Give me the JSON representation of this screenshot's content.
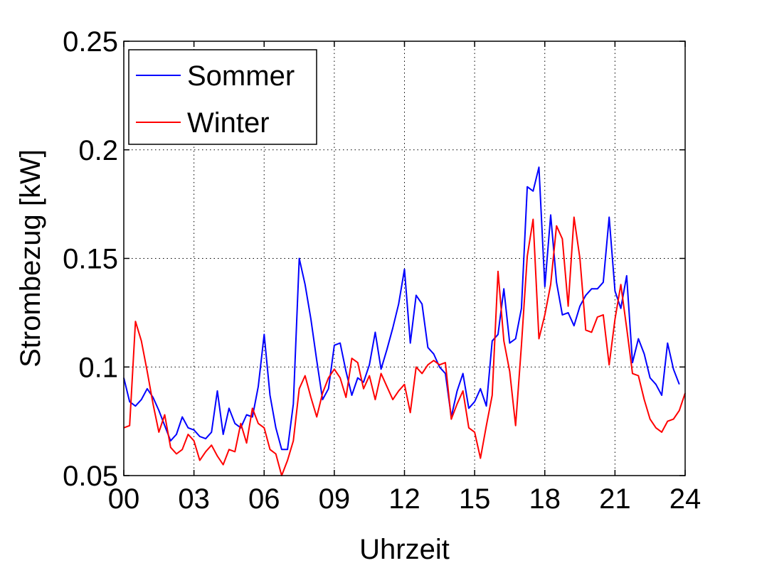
{
  "chart_data": {
    "type": "line",
    "xlabel": "Uhrzeit",
    "ylabel": "Strombezug [kW]",
    "xlim": [
      0,
      24
    ],
    "ylim": [
      0.05,
      0.25
    ],
    "x_ticks": [
      0,
      3,
      6,
      9,
      12,
      15,
      18,
      21,
      24
    ],
    "x_tick_labels": [
      "00",
      "03",
      "06",
      "09",
      "12",
      "15",
      "18",
      "21",
      "24"
    ],
    "y_ticks": [
      0.05,
      0.1,
      0.15,
      0.2,
      0.25
    ],
    "y_tick_labels": [
      "0.05",
      "0.1",
      "0.15",
      "0.2",
      "0.25"
    ],
    "grid": true,
    "legend_position": "top-left",
    "series": [
      {
        "name": "Sommer",
        "color": "#0000ff",
        "points": [
          [
            0.0,
            0.095
          ],
          [
            0.25,
            0.084
          ],
          [
            0.5,
            0.082
          ],
          [
            0.75,
            0.085
          ],
          [
            1.0,
            0.09
          ],
          [
            1.25,
            0.086
          ],
          [
            1.5,
            0.08
          ],
          [
            1.75,
            0.073
          ],
          [
            2.0,
            0.066
          ],
          [
            2.25,
            0.069
          ],
          [
            2.5,
            0.077
          ],
          [
            2.75,
            0.072
          ],
          [
            3.0,
            0.071
          ],
          [
            3.25,
            0.068
          ],
          [
            3.5,
            0.067
          ],
          [
            3.75,
            0.07
          ],
          [
            4.0,
            0.089
          ],
          [
            4.25,
            0.069
          ],
          [
            4.5,
            0.081
          ],
          [
            4.75,
            0.074
          ],
          [
            5.0,
            0.072
          ],
          [
            5.25,
            0.078
          ],
          [
            5.5,
            0.077
          ],
          [
            5.75,
            0.091
          ],
          [
            6.0,
            0.115
          ],
          [
            6.25,
            0.087
          ],
          [
            6.5,
            0.072
          ],
          [
            6.75,
            0.062
          ],
          [
            7.0,
            0.062
          ],
          [
            7.25,
            0.083
          ],
          [
            7.5,
            0.15
          ],
          [
            7.75,
            0.138
          ],
          [
            8.0,
            0.122
          ],
          [
            8.25,
            0.103
          ],
          [
            8.5,
            0.085
          ],
          [
            8.75,
            0.09
          ],
          [
            9.0,
            0.11
          ],
          [
            9.25,
            0.111
          ],
          [
            9.5,
            0.098
          ],
          [
            9.75,
            0.087
          ],
          [
            10.0,
            0.095
          ],
          [
            10.25,
            0.093
          ],
          [
            10.5,
            0.101
          ],
          [
            10.75,
            0.116
          ],
          [
            11.0,
            0.099
          ],
          [
            11.25,
            0.108
          ],
          [
            11.5,
            0.118
          ],
          [
            11.75,
            0.129
          ],
          [
            12.0,
            0.145
          ],
          [
            12.25,
            0.111
          ],
          [
            12.5,
            0.133
          ],
          [
            12.75,
            0.129
          ],
          [
            13.0,
            0.109
          ],
          [
            13.25,
            0.106
          ],
          [
            13.5,
            0.1
          ],
          [
            13.75,
            0.097
          ],
          [
            14.0,
            0.077
          ],
          [
            14.25,
            0.089
          ],
          [
            14.5,
            0.097
          ],
          [
            14.75,
            0.081
          ],
          [
            15.0,
            0.084
          ],
          [
            15.25,
            0.09
          ],
          [
            15.5,
            0.082
          ],
          [
            15.75,
            0.112
          ],
          [
            16.0,
            0.115
          ],
          [
            16.25,
            0.136
          ],
          [
            16.5,
            0.111
          ],
          [
            16.75,
            0.113
          ],
          [
            17.0,
            0.127
          ],
          [
            17.25,
            0.183
          ],
          [
            17.5,
            0.181
          ],
          [
            17.75,
            0.192
          ],
          [
            18.0,
            0.137
          ],
          [
            18.25,
            0.17
          ],
          [
            18.5,
            0.139
          ],
          [
            18.75,
            0.124
          ],
          [
            19.0,
            0.125
          ],
          [
            19.25,
            0.119
          ],
          [
            19.5,
            0.128
          ],
          [
            19.75,
            0.133
          ],
          [
            20.0,
            0.136
          ],
          [
            20.25,
            0.136
          ],
          [
            20.5,
            0.139
          ],
          [
            20.75,
            0.169
          ],
          [
            21.0,
            0.135
          ],
          [
            21.25,
            0.127
          ],
          [
            21.5,
            0.142
          ],
          [
            21.75,
            0.102
          ],
          [
            22.0,
            0.113
          ],
          [
            22.25,
            0.106
          ],
          [
            22.5,
            0.095
          ],
          [
            22.75,
            0.092
          ],
          [
            23.0,
            0.087
          ],
          [
            23.25,
            0.111
          ],
          [
            23.5,
            0.099
          ],
          [
            23.75,
            0.092
          ]
        ]
      },
      {
        "name": "Winter",
        "color": "#ff0000",
        "points": [
          [
            0.0,
            0.072
          ],
          [
            0.25,
            0.073
          ],
          [
            0.5,
            0.121
          ],
          [
            0.75,
            0.112
          ],
          [
            1.0,
            0.098
          ],
          [
            1.25,
            0.083
          ],
          [
            1.5,
            0.07
          ],
          [
            1.75,
            0.078
          ],
          [
            2.0,
            0.063
          ],
          [
            2.25,
            0.06
          ],
          [
            2.5,
            0.062
          ],
          [
            2.75,
            0.069
          ],
          [
            3.0,
            0.066
          ],
          [
            3.25,
            0.057
          ],
          [
            3.5,
            0.061
          ],
          [
            3.75,
            0.064
          ],
          [
            4.0,
            0.059
          ],
          [
            4.25,
            0.055
          ],
          [
            4.5,
            0.062
          ],
          [
            4.75,
            0.061
          ],
          [
            5.0,
            0.074
          ],
          [
            5.25,
            0.065
          ],
          [
            5.5,
            0.081
          ],
          [
            5.75,
            0.074
          ],
          [
            6.0,
            0.072
          ],
          [
            6.25,
            0.062
          ],
          [
            6.5,
            0.06
          ],
          [
            6.75,
            0.05
          ],
          [
            7.0,
            0.057
          ],
          [
            7.25,
            0.066
          ],
          [
            7.5,
            0.09
          ],
          [
            7.75,
            0.096
          ],
          [
            8.0,
            0.086
          ],
          [
            8.25,
            0.077
          ],
          [
            8.5,
            0.088
          ],
          [
            8.75,
            0.095
          ],
          [
            9.0,
            0.099
          ],
          [
            9.25,
            0.095
          ],
          [
            9.5,
            0.086
          ],
          [
            9.75,
            0.104
          ],
          [
            10.0,
            0.102
          ],
          [
            10.25,
            0.09
          ],
          [
            10.5,
            0.096
          ],
          [
            10.75,
            0.085
          ],
          [
            11.0,
            0.097
          ],
          [
            11.25,
            0.091
          ],
          [
            11.5,
            0.085
          ],
          [
            11.75,
            0.089
          ],
          [
            12.0,
            0.092
          ],
          [
            12.25,
            0.079
          ],
          [
            12.5,
            0.1
          ],
          [
            12.75,
            0.097
          ],
          [
            13.0,
            0.101
          ],
          [
            13.25,
            0.103
          ],
          [
            13.5,
            0.101
          ],
          [
            13.75,
            0.102
          ],
          [
            14.0,
            0.076
          ],
          [
            14.25,
            0.083
          ],
          [
            14.5,
            0.089
          ],
          [
            14.75,
            0.072
          ],
          [
            15.0,
            0.07
          ],
          [
            15.25,
            0.058
          ],
          [
            15.5,
            0.073
          ],
          [
            15.75,
            0.087
          ],
          [
            16.0,
            0.144
          ],
          [
            16.25,
            0.112
          ],
          [
            16.5,
            0.098
          ],
          [
            16.75,
            0.073
          ],
          [
            17.0,
            0.11
          ],
          [
            17.25,
            0.151
          ],
          [
            17.5,
            0.168
          ],
          [
            17.75,
            0.113
          ],
          [
            18.0,
            0.124
          ],
          [
            18.25,
            0.138
          ],
          [
            18.5,
            0.165
          ],
          [
            18.75,
            0.159
          ],
          [
            19.0,
            0.128
          ],
          [
            19.25,
            0.169
          ],
          [
            19.5,
            0.15
          ],
          [
            19.75,
            0.117
          ],
          [
            20.0,
            0.116
          ],
          [
            20.25,
            0.123
          ],
          [
            20.5,
            0.124
          ],
          [
            20.75,
            0.101
          ],
          [
            21.0,
            0.122
          ],
          [
            21.25,
            0.138
          ],
          [
            21.5,
            0.118
          ],
          [
            21.75,
            0.097
          ],
          [
            22.0,
            0.096
          ],
          [
            22.25,
            0.085
          ],
          [
            22.5,
            0.076
          ],
          [
            22.75,
            0.072
          ],
          [
            23.0,
            0.07
          ],
          [
            23.25,
            0.075
          ],
          [
            23.5,
            0.076
          ],
          [
            23.75,
            0.08
          ],
          [
            24.0,
            0.088
          ]
        ]
      }
    ]
  }
}
